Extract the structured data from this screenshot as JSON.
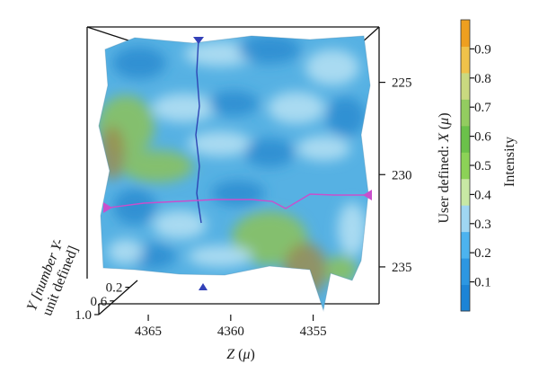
{
  "chart_data": {
    "type": "surface3d",
    "title": "",
    "axes": {
      "x": {
        "label_parts": [
          "User defined: ",
          "X",
          " (",
          "μ",
          ")"
        ],
        "ticks": [
          "225",
          "230",
          "235"
        ],
        "range": [
          222,
          237
        ],
        "orientation": "vertical"
      },
      "y": {
        "label_line1": "Y [number Y-",
        "label_line2": "unit defined]",
        "ticks": [
          "0.2",
          "0.6",
          "1.0"
        ],
        "range": [
          0,
          1
        ]
      },
      "z": {
        "label_parts": [
          "Z",
          " (",
          "μ",
          ")"
        ],
        "ticks": [
          "4365",
          "4360",
          "4355"
        ],
        "range": [
          4368,
          4351
        ]
      }
    },
    "colorbar": {
      "label": "Intensity",
      "ticks": [
        "0.1",
        "0.2",
        "0.3",
        "0.4",
        "0.5",
        "0.6",
        "0.7",
        "0.8",
        "0.9"
      ],
      "range": [
        0,
        1
      ],
      "colors": [
        "#1c84d6",
        "#2c97e2",
        "#4cb3ef",
        "#9fd6f2",
        "#c8e8a4",
        "#8cd257",
        "#6bc14a",
        "#93cc60",
        "#cad980",
        "#f0c24a",
        "#ee9f20"
      ]
    },
    "surface_colors": {
      "base": "#56b1e3",
      "dark": "#2a8bd0",
      "light": "#b7e2f3",
      "green": "#8cc25a",
      "olive": "#9a8d52"
    },
    "markers": {
      "color_vertical": "#2e46b4",
      "color_horizontal": "#c94fcc",
      "vertical_line_z": 4361.5,
      "horizontal_line_x": 231.2
    }
  }
}
